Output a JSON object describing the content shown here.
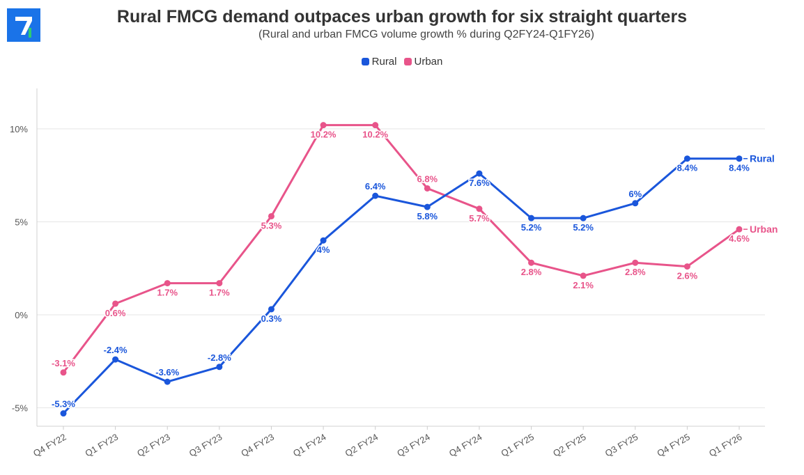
{
  "header": {
    "title": "Rural FMCG demand outpaces urban growth for six straight quarters",
    "subtitle": "(Rural and urban FMCG volume growth % during Q2FY24-Q1FY26)"
  },
  "colors": {
    "rural": "#1a56db",
    "urban": "#e8548a",
    "logo_bg": "#1a73e8",
    "logo_fg": "#ffffff",
    "logo_accent": "#2ecc71"
  },
  "chart_data": {
    "type": "line",
    "title": "Rural FMCG demand outpaces urban growth for six straight quarters",
    "subtitle": "(Rural and urban FMCG volume growth % during Q2FY24-Q1FY26)",
    "categories": [
      "Q4 FY22",
      "Q1 FY23",
      "Q2 FY23",
      "Q3 FY23",
      "Q4 FY23",
      "Q1 FY24",
      "Q2 FY24",
      "Q3 FY24",
      "Q4 FY24",
      "Q1 FY25",
      "Q2 FY25",
      "Q3 FY25",
      "Q4 FY25",
      "Q1 FY26"
    ],
    "yticks": [
      -5,
      0,
      5,
      10
    ],
    "ytick_labels": [
      "-5%",
      "0%",
      "5%",
      "10%"
    ],
    "ylim": [
      -6,
      12
    ],
    "grid": true,
    "legend": "top-center",
    "series": [
      {
        "name": "Rural",
        "color": "#1a56db",
        "values": [
          -5.3,
          -2.4,
          -3.6,
          -2.8,
          0.3,
          4,
          6.4,
          5.8,
          7.6,
          5.2,
          5.2,
          6,
          8.4,
          8.4
        ],
        "labels": [
          "-5.3%",
          "-2.4%",
          "-3.6%",
          "-2.8%",
          "0.3%",
          "4%",
          "6.4%",
          "5.8%",
          "7.6%",
          "5.2%",
          "5.2%",
          "6%",
          "8.4%",
          "8.4%"
        ],
        "end_label": "Rural"
      },
      {
        "name": "Urban",
        "color": "#e8548a",
        "values": [
          -3.1,
          0.6,
          1.7,
          1.7,
          5.3,
          10.2,
          10.2,
          6.8,
          5.7,
          2.8,
          2.1,
          2.8,
          2.6,
          4.6
        ],
        "labels": [
          "-3.1%",
          "0.6%",
          "1.7%",
          "1.7%",
          "5.3%",
          "10.2%",
          "10.2%",
          "6.8%",
          "5.7%",
          "2.8%",
          "2.1%",
          "2.8%",
          "2.6%",
          "4.6%"
        ],
        "end_label": "Urban"
      }
    ]
  }
}
